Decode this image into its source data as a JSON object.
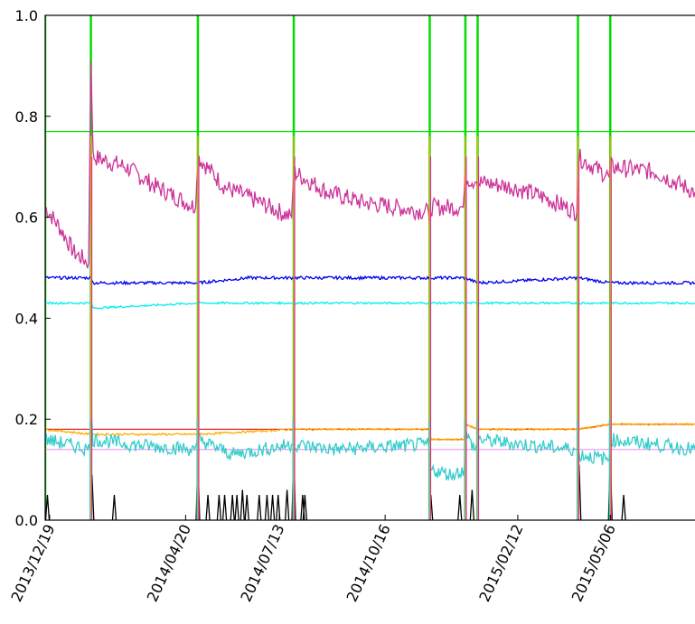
{
  "chart_data": {
    "type": "line",
    "title": "",
    "xlabel": "",
    "ylabel": "",
    "ylim": [
      0.0,
      1.0
    ],
    "xlim": [
      "2013-12-15",
      "2015-07-21"
    ],
    "y_ticks": [
      "0.0",
      "0.2",
      "0.4",
      "0.6",
      "0.8",
      "1.0"
    ],
    "x_ticks": [
      {
        "date": "2013-12-19",
        "label": "2013/12/19"
      },
      {
        "date": "2014-04-20",
        "label": "2014/04/20"
      },
      {
        "date": "2014-07-13",
        "label": "2014/07/13"
      },
      {
        "date": "2014-10-16",
        "label": "2014/10/16"
      },
      {
        "date": "2015-02-12",
        "label": "2015/02/12"
      },
      {
        "date": "2015-05-06",
        "label": "2015/05/06"
      }
    ],
    "grid": false,
    "legend": "none",
    "segment_boundaries": [
      "2013-12-15",
      "2014-01-25",
      "2014-05-01",
      "2014-07-26",
      "2014-11-25",
      "2014-12-27",
      "2015-01-07",
      "2015-04-07",
      "2015-05-06",
      "2015-07-21"
    ],
    "series": [
      {
        "color": "#00dd00",
        "points": [
          [
            "2013-12-15",
            0.77
          ],
          [
            "2015-07-21",
            0.77
          ]
        ],
        "spikes": [
          "2013-12-15",
          "2014-01-25",
          "2014-05-01",
          "2014-07-26",
          "2014-11-25",
          "2014-12-27",
          "2015-01-07",
          "2015-04-07",
          "2015-05-06"
        ]
      },
      {
        "color": "#cc3399",
        "points": [
          [
            "2013-12-15",
            0.62
          ],
          [
            "2013-12-28",
            0.58
          ],
          [
            "2014-01-10",
            0.53
          ],
          [
            "2014-01-23",
            0.51
          ],
          [
            "2014-01-25",
            0.91
          ],
          [
            "2014-01-27",
            0.72
          ],
          [
            "2014-02-25",
            0.7
          ],
          [
            "2014-03-25",
            0.66
          ],
          [
            "2014-04-29",
            0.62
          ],
          [
            "2014-05-01",
            0.72
          ],
          [
            "2014-05-25",
            0.66
          ],
          [
            "2014-06-25",
            0.63
          ],
          [
            "2014-07-24",
            0.6
          ],
          [
            "2014-07-26",
            0.69
          ],
          [
            "2014-08-25",
            0.65
          ],
          [
            "2014-09-25",
            0.63
          ],
          [
            "2014-10-25",
            0.62
          ],
          [
            "2014-11-24",
            0.61
          ],
          [
            "2014-11-25",
            0.58
          ],
          [
            "2014-11-26",
            0.62
          ],
          [
            "2014-12-25",
            0.62
          ],
          [
            "2014-12-27",
            0.68
          ],
          [
            "2015-01-05",
            0.67
          ],
          [
            "2015-01-07",
            0.67
          ],
          [
            "2015-02-07",
            0.66
          ],
          [
            "2015-03-07",
            0.64
          ],
          [
            "2015-04-06",
            0.61
          ],
          [
            "2015-04-07",
            0.72
          ],
          [
            "2015-05-05",
            0.68
          ],
          [
            "2015-05-06",
            0.7
          ],
          [
            "2015-06-15",
            0.69
          ],
          [
            "2015-07-21",
            0.65
          ]
        ]
      },
      {
        "color": "#0000ee",
        "points": [
          [
            "2013-12-15",
            0.48
          ],
          [
            "2014-01-25",
            0.48
          ],
          [
            "2014-01-27",
            0.47
          ],
          [
            "2014-03-25",
            0.47
          ],
          [
            "2014-05-01",
            0.47
          ],
          [
            "2014-06-15",
            0.48
          ],
          [
            "2014-07-26",
            0.48
          ],
          [
            "2014-09-15",
            0.48
          ],
          [
            "2014-11-25",
            0.48
          ],
          [
            "2014-12-27",
            0.48
          ],
          [
            "2015-01-07",
            0.47
          ],
          [
            "2015-04-07",
            0.48
          ],
          [
            "2015-05-06",
            0.47
          ],
          [
            "2015-07-21",
            0.47
          ]
        ]
      },
      {
        "color": "#00eeee",
        "points": [
          [
            "2013-12-15",
            0.43
          ],
          [
            "2014-01-25",
            0.43
          ],
          [
            "2014-01-27",
            0.42
          ],
          [
            "2014-05-01",
            0.43
          ],
          [
            "2014-07-26",
            0.43
          ],
          [
            "2014-11-25",
            0.43
          ],
          [
            "2015-01-07",
            0.43
          ],
          [
            "2015-04-07",
            0.43
          ],
          [
            "2015-07-21",
            0.43
          ]
        ]
      },
      {
        "color": "#ee2222",
        "points": [
          [
            "2013-12-15",
            0.18
          ],
          [
            "2014-11-25",
            0.18
          ],
          [
            "2014-11-26",
            0.16
          ],
          [
            "2014-12-26",
            0.16
          ],
          [
            "2014-12-27",
            0.19
          ],
          [
            "2015-01-07",
            0.18
          ],
          [
            "2015-04-07",
            0.18
          ],
          [
            "2015-05-06",
            0.19
          ],
          [
            "2015-07-21",
            0.19
          ]
        ]
      },
      {
        "color": "#ffaa00",
        "points": [
          [
            "2013-12-15",
            0.18
          ],
          [
            "2014-01-25",
            0.17
          ],
          [
            "2014-05-01",
            0.17
          ],
          [
            "2014-07-26",
            0.18
          ],
          [
            "2014-11-25",
            0.18
          ],
          [
            "2014-11-26",
            0.16
          ],
          [
            "2014-12-26",
            0.16
          ],
          [
            "2014-12-27",
            0.19
          ],
          [
            "2015-01-07",
            0.18
          ],
          [
            "2015-04-07",
            0.18
          ],
          [
            "2015-05-06",
            0.19
          ],
          [
            "2015-07-21",
            0.19
          ]
        ]
      },
      {
        "color": "#eeaaee",
        "points": [
          [
            "2013-12-15",
            0.14
          ],
          [
            "2015-07-21",
            0.14
          ]
        ]
      },
      {
        "color": "#33cccc",
        "points": [
          [
            "2013-12-15",
            0.16
          ],
          [
            "2014-01-05",
            0.15
          ],
          [
            "2014-01-24",
            0.14
          ],
          [
            "2014-01-25",
            0.22
          ],
          [
            "2014-01-27",
            0.16
          ],
          [
            "2014-03-01",
            0.15
          ],
          [
            "2014-04-28",
            0.14
          ],
          [
            "2014-05-01",
            0.16
          ],
          [
            "2014-06-01",
            0.13
          ],
          [
            "2014-07-24",
            0.15
          ],
          [
            "2014-07-26",
            0.15
          ],
          [
            "2014-09-01",
            0.14
          ],
          [
            "2014-11-24",
            0.15
          ],
          [
            "2014-11-26",
            0.1
          ],
          [
            "2014-12-15",
            0.09
          ],
          [
            "2014-12-26",
            0.1
          ],
          [
            "2014-12-27",
            0.17
          ],
          [
            "2015-01-05",
            0.14
          ],
          [
            "2015-01-07",
            0.16
          ],
          [
            "2015-02-15",
            0.15
          ],
          [
            "2015-04-06",
            0.14
          ],
          [
            "2015-04-07",
            0.13
          ],
          [
            "2015-05-05",
            0.12
          ],
          [
            "2015-05-06",
            0.16
          ],
          [
            "2015-06-15",
            0.15
          ],
          [
            "2015-07-21",
            0.14
          ]
        ]
      },
      {
        "color": "#000000",
        "spikes": [
          [
            "2013-12-17",
            0.05
          ],
          [
            "2014-01-26",
            0.09
          ],
          [
            "2014-02-15",
            0.05
          ],
          [
            "2014-05-01",
            0.12
          ],
          [
            "2014-05-10",
            0.05
          ],
          [
            "2014-05-20",
            0.05
          ],
          [
            "2014-05-25",
            0.05
          ],
          [
            "2014-06-01",
            0.05
          ],
          [
            "2014-06-05",
            0.05
          ],
          [
            "2014-06-10",
            0.06
          ],
          [
            "2014-06-14",
            0.05
          ],
          [
            "2014-06-25",
            0.05
          ],
          [
            "2014-07-02",
            0.05
          ],
          [
            "2014-07-07",
            0.05
          ],
          [
            "2014-07-12",
            0.05
          ],
          [
            "2014-07-20",
            0.06
          ],
          [
            "2014-07-26",
            0.14
          ],
          [
            "2014-08-03",
            0.05
          ],
          [
            "2014-08-05",
            0.05
          ],
          [
            "2014-11-26",
            0.05
          ],
          [
            "2014-12-22",
            0.05
          ],
          [
            "2015-01-02",
            0.06
          ],
          [
            "2015-04-08",
            0.11
          ],
          [
            "2015-05-06",
            0.13
          ],
          [
            "2015-05-18",
            0.05
          ]
        ]
      }
    ]
  }
}
